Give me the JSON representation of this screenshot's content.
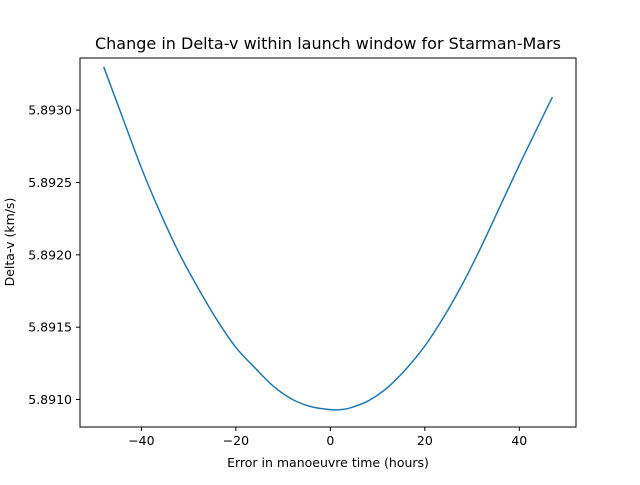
{
  "chart_data": {
    "type": "line",
    "title": "Change in Delta-v within launch window for Starman-Mars",
    "xlabel": "Error in manoeuvre time (hours)",
    "ylabel": "Delta-v (km/s)",
    "xlim": [
      -53,
      52
    ],
    "ylim": [
      5.89081,
      5.89336
    ],
    "xticks": [
      {
        "value": -40,
        "label": "−40"
      },
      {
        "value": -20,
        "label": "−20"
      },
      {
        "value": 0,
        "label": "0"
      },
      {
        "value": 20,
        "label": "20"
      },
      {
        "value": 40,
        "label": "40"
      }
    ],
    "yticks": [
      {
        "value": 5.891,
        "label": "5.8910"
      },
      {
        "value": 5.8915,
        "label": "5.8915"
      },
      {
        "value": 5.892,
        "label": "5.8920"
      },
      {
        "value": 5.8925,
        "label": "5.8925"
      },
      {
        "value": 5.893,
        "label": "5.8930"
      }
    ],
    "grid": false,
    "legend": "none",
    "series": [
      {
        "color": "#1f77b4",
        "x": [
          -48,
          -44,
          -40,
          -36,
          -32,
          -28,
          -24,
          -20,
          -16,
          -12,
          -8,
          -4,
          0,
          2,
          4,
          8,
          12,
          16,
          20,
          24,
          28,
          32,
          36,
          40,
          44,
          47
        ],
        "y": [
          5.8933,
          5.89295,
          5.8926,
          5.89229,
          5.89201,
          5.89177,
          5.89155,
          5.89136,
          5.89122,
          5.89109,
          5.891,
          5.89095,
          5.89093,
          5.89093,
          5.89094,
          5.89099,
          5.89108,
          5.89121,
          5.89137,
          5.89157,
          5.8918,
          5.89206,
          5.89234,
          5.89262,
          5.89289,
          5.89309
        ]
      }
    ]
  }
}
